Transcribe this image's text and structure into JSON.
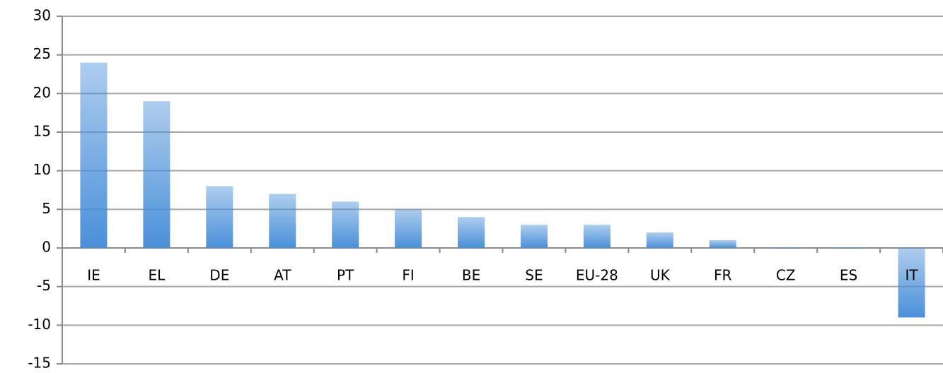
{
  "chart_data": {
    "type": "bar",
    "categories": [
      "IE",
      "EL",
      "DE",
      "AT",
      "PT",
      "FI",
      "BE",
      "SE",
      "EU-28",
      "UK",
      "FR",
      "CZ",
      "ES",
      "IT"
    ],
    "values": [
      24,
      19,
      8,
      7,
      6,
      5,
      4,
      3,
      3,
      2,
      1,
      0,
      0,
      -9
    ],
    "color": "#4a90d9",
    "ylim": [
      -15,
      30
    ],
    "yticks": [
      -15,
      -10,
      -5,
      0,
      5,
      10,
      15,
      20,
      25,
      30
    ],
    "grid": true
  }
}
